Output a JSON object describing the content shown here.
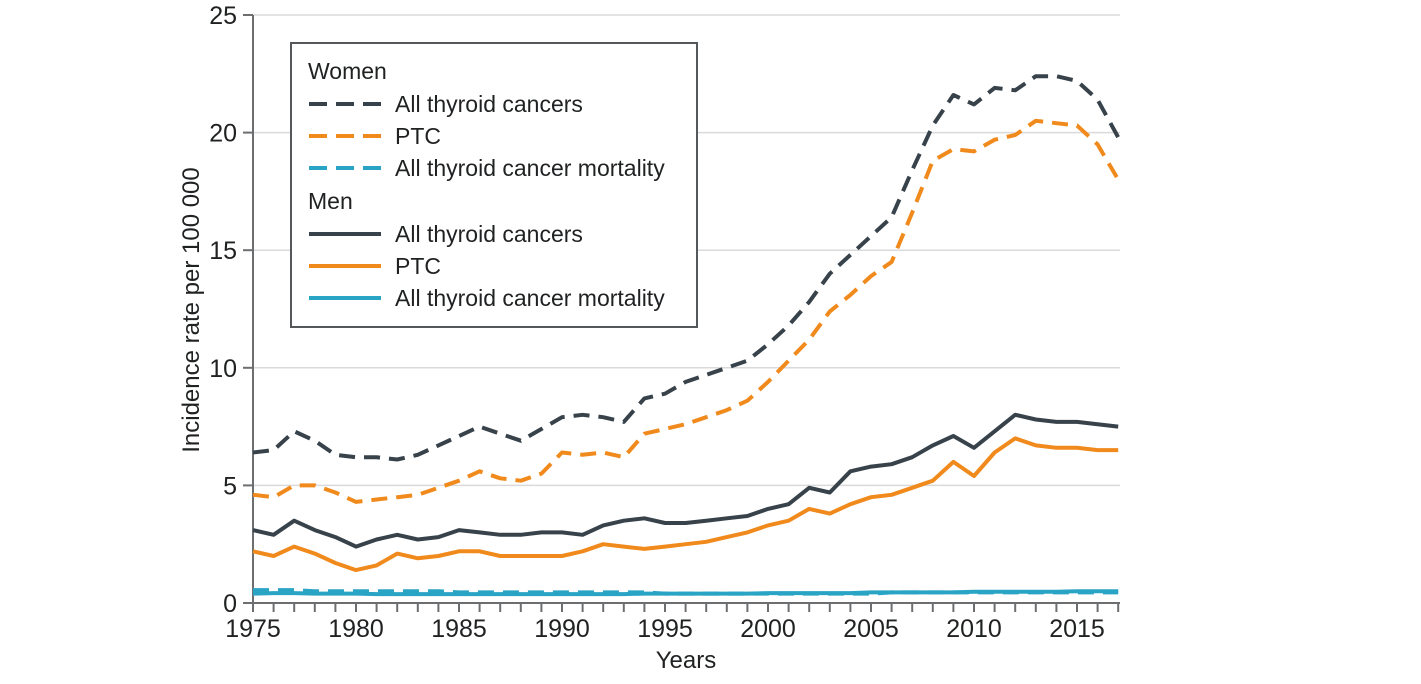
{
  "figure": {
    "ylabel": "Incidence rate per 100 000",
    "xlabel": "Years"
  },
  "legend": {
    "groups": [
      {
        "title": "Women"
      },
      {
        "title": "Men"
      }
    ]
  },
  "colors": {
    "dark": "#37424A",
    "orange": "#F18A1C",
    "teal": "#29A4C5",
    "gridline": "#DADADA",
    "axis": "#6D6E70",
    "text": "#1F2122",
    "legend_border": "#55585A"
  },
  "chart_data": {
    "type": "line",
    "title": "",
    "xlabel": "Years",
    "ylabel": "Incidence rate per 100 000",
    "grid": "horizontal",
    "legend_position": "top-left-inside",
    "xlim": [
      1975,
      2017
    ],
    "ylim": [
      0,
      25
    ],
    "yticks": [
      0,
      5,
      10,
      15,
      20,
      25
    ],
    "x_tick_labels": [
      "1975",
      "1980",
      "1985",
      "1990",
      "1995",
      "2000",
      "2005",
      "2010",
      "2015"
    ],
    "x": [
      1975,
      1976,
      1977,
      1978,
      1979,
      1980,
      1981,
      1982,
      1983,
      1984,
      1985,
      1986,
      1987,
      1988,
      1989,
      1990,
      1991,
      1992,
      1993,
      1994,
      1995,
      1996,
      1997,
      1998,
      1999,
      2000,
      2001,
      2002,
      2003,
      2004,
      2005,
      2006,
      2007,
      2008,
      2009,
      2010,
      2011,
      2012,
      2013,
      2014,
      2015,
      2016,
      2017
    ],
    "series": [
      {
        "id": "women_all",
        "group": "Women",
        "name": "All thyroid cancers",
        "color_key": "dark",
        "dash": true,
        "values": [
          6.4,
          6.5,
          7.3,
          6.9,
          6.3,
          6.2,
          6.2,
          6.1,
          6.3,
          6.7,
          7.1,
          7.5,
          7.2,
          6.9,
          7.4,
          7.9,
          8.0,
          7.9,
          7.7,
          8.7,
          8.9,
          9.4,
          9.7,
          10.0,
          10.3,
          11.0,
          11.8,
          12.8,
          14.0,
          14.8,
          15.6,
          16.4,
          18.4,
          20.3,
          21.6,
          21.2,
          21.9,
          21.8,
          22.4,
          22.4,
          22.2,
          21.4,
          19.8
        ]
      },
      {
        "id": "women_ptc",
        "group": "Women",
        "name": "PTC",
        "color_key": "orange",
        "dash": true,
        "values": [
          4.6,
          4.5,
          5.0,
          5.0,
          4.7,
          4.3,
          4.4,
          4.5,
          4.6,
          4.9,
          5.2,
          5.6,
          5.3,
          5.2,
          5.5,
          6.4,
          6.3,
          6.4,
          6.2,
          7.2,
          7.4,
          7.6,
          7.9,
          8.2,
          8.6,
          9.4,
          10.3,
          11.2,
          12.4,
          13.1,
          13.9,
          14.5,
          16.6,
          18.8,
          19.3,
          19.2,
          19.7,
          19.9,
          20.5,
          20.4,
          20.3,
          19.5,
          18.0
        ]
      },
      {
        "id": "women_mort",
        "group": "Women",
        "name": "All thyroid cancer mortality",
        "color_key": "teal",
        "dash": true,
        "values": [
          0.55,
          0.55,
          0.55,
          0.5,
          0.5,
          0.5,
          0.5,
          0.5,
          0.5,
          0.5,
          0.45,
          0.45,
          0.45,
          0.45,
          0.45,
          0.45,
          0.45,
          0.45,
          0.45,
          0.45,
          0.4,
          0.4,
          0.4,
          0.4,
          0.4,
          0.4,
          0.4,
          0.4,
          0.4,
          0.4,
          0.4,
          0.45,
          0.45,
          0.45,
          0.45,
          0.45,
          0.45,
          0.45,
          0.45,
          0.45,
          0.45,
          0.45,
          0.45
        ]
      },
      {
        "id": "men_all",
        "group": "Men",
        "name": "All thyroid cancers",
        "color_key": "dark",
        "dash": false,
        "values": [
          3.1,
          2.9,
          3.5,
          3.1,
          2.8,
          2.4,
          2.7,
          2.9,
          2.7,
          2.8,
          3.1,
          3.0,
          2.9,
          2.9,
          3.0,
          3.0,
          2.9,
          3.3,
          3.5,
          3.6,
          3.4,
          3.4,
          3.5,
          3.6,
          3.7,
          4.0,
          4.2,
          4.9,
          4.7,
          5.6,
          5.8,
          5.9,
          6.2,
          6.7,
          7.1,
          6.6,
          7.3,
          8.0,
          7.8,
          7.7,
          7.7,
          7.6,
          7.5
        ]
      },
      {
        "id": "men_ptc",
        "group": "Men",
        "name": "PTC",
        "color_key": "orange",
        "dash": false,
        "values": [
          2.2,
          2.0,
          2.4,
          2.1,
          1.7,
          1.4,
          1.6,
          2.1,
          1.9,
          2.0,
          2.2,
          2.2,
          2.0,
          2.0,
          2.0,
          2.0,
          2.2,
          2.5,
          2.4,
          2.3,
          2.4,
          2.5,
          2.6,
          2.8,
          3.0,
          3.3,
          3.5,
          4.0,
          3.8,
          4.2,
          4.5,
          4.6,
          4.9,
          5.2,
          6.0,
          5.4,
          6.4,
          7.0,
          6.7,
          6.6,
          6.6,
          6.5,
          6.5
        ]
      },
      {
        "id": "men_mort",
        "group": "Men",
        "name": "All thyroid cancer mortality",
        "color_key": "teal",
        "dash": false,
        "values": [
          0.4,
          0.42,
          0.42,
          0.4,
          0.4,
          0.4,
          0.38,
          0.38,
          0.38,
          0.38,
          0.38,
          0.38,
          0.38,
          0.38,
          0.38,
          0.38,
          0.38,
          0.38,
          0.38,
          0.4,
          0.4,
          0.4,
          0.4,
          0.4,
          0.4,
          0.42,
          0.42,
          0.42,
          0.42,
          0.42,
          0.45,
          0.45,
          0.45,
          0.45,
          0.45,
          0.48,
          0.48,
          0.48,
          0.48,
          0.48,
          0.5,
          0.5,
          0.5
        ]
      }
    ]
  }
}
